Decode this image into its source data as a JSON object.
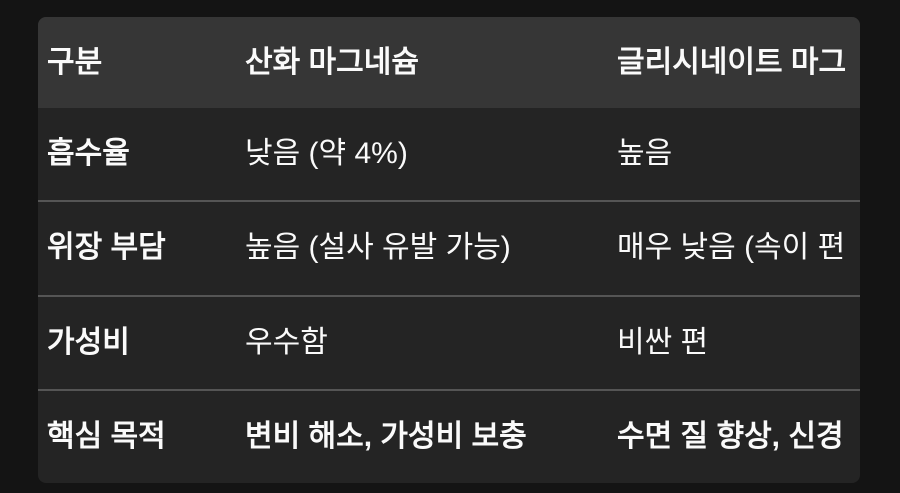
{
  "table": {
    "title": "magnesium-comparison-table",
    "header": [
      "구분",
      "산화 마그네슘",
      "글리시네이트 마그"
    ],
    "rows": [
      {
        "label": "흡수율",
        "oxide": "낮음 (약 4%)",
        "glycinate": "높음"
      },
      {
        "label": "위장 부담",
        "oxide": "높음 (설사 유발 가능)",
        "glycinate": "매우 낮음 (속이 편"
      },
      {
        "label": "가성비",
        "oxide": "우수함",
        "glycinate": "비싼 편"
      },
      {
        "label": "핵심 목적",
        "oxide": "변비 해소, 가성비 보충",
        "glycinate": "수면 질 향상, 신경"
      }
    ],
    "colors": {
      "page_background": "#141414",
      "table_background": "#242424",
      "header_background": "#363636",
      "divider": "#555555",
      "text": "#fafafa"
    }
  }
}
